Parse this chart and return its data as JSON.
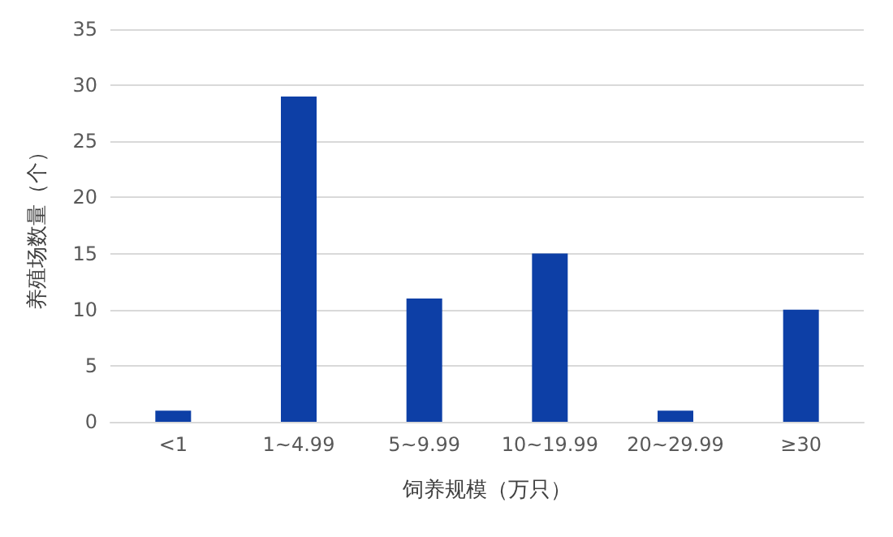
{
  "chart_data": {
    "type": "bar",
    "xlabel": "饲养规模（万只）",
    "ylabel": "养殖场数量（个）",
    "categories": [
      "<1",
      "1~4.99",
      "5~9.99",
      "10~19.99",
      "20~29.99",
      "≥30"
    ],
    "values": [
      1,
      29,
      11,
      15,
      1,
      10
    ],
    "color": "#0d3fa6",
    "ylim": [
      0,
      35
    ],
    "yticks": [
      0,
      5,
      10,
      15,
      20,
      25,
      30,
      35
    ],
    "grid": "y"
  }
}
